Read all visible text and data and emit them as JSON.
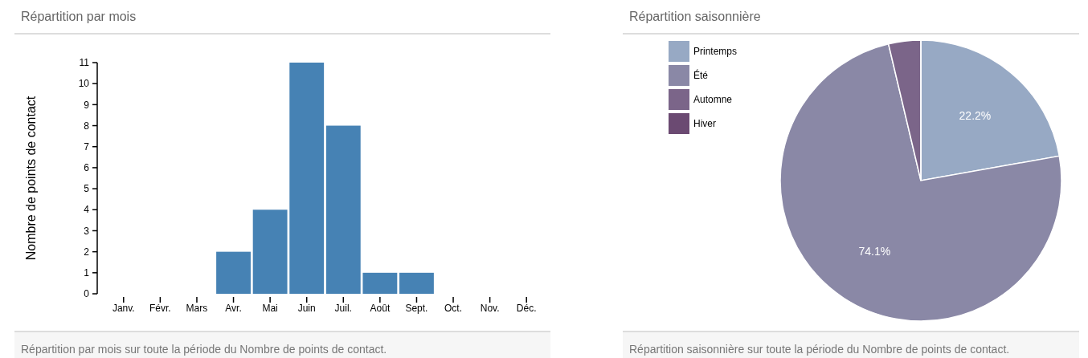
{
  "chart_data": [
    {
      "type": "bar",
      "title": "Répartition par mois",
      "ylabel": "Nombre de points de contact",
      "annotations": [
        "Répartition par mois sur toute la période du Nombre de points de contact."
      ],
      "categories": [
        "Janv.",
        "Févr.",
        "Mars",
        "Avr.",
        "Mai",
        "Juin",
        "Juil.",
        "Août",
        "Sept.",
        "Oct.",
        "Nov.",
        "Déc."
      ],
      "values": [
        0,
        0,
        0,
        2,
        4,
        11,
        8,
        1,
        1,
        0,
        0,
        0
      ],
      "color": "#4682b4",
      "ylim": [
        0,
        11
      ],
      "yticks": [
        0,
        1,
        2,
        3,
        4,
        5,
        6,
        7,
        8,
        9,
        10,
        11
      ],
      "grid": false
    },
    {
      "type": "pie",
      "title": "Répartition saisonnière",
      "annotations": [
        "Répartition saisonnière sur toute la période du Nombre de points de contact."
      ],
      "categories": [
        "Printemps",
        "Été",
        "Automne",
        "Hiver"
      ],
      "values": [
        22.2,
        74.1,
        3.7,
        0
      ],
      "colors": [
        "#97a9c4",
        "#8a88a6",
        "#7b6589",
        "#6b4a72"
      ],
      "value_labels": [
        "22.2%",
        "74.1%",
        null,
        null
      ],
      "legend": "top left"
    }
  ]
}
